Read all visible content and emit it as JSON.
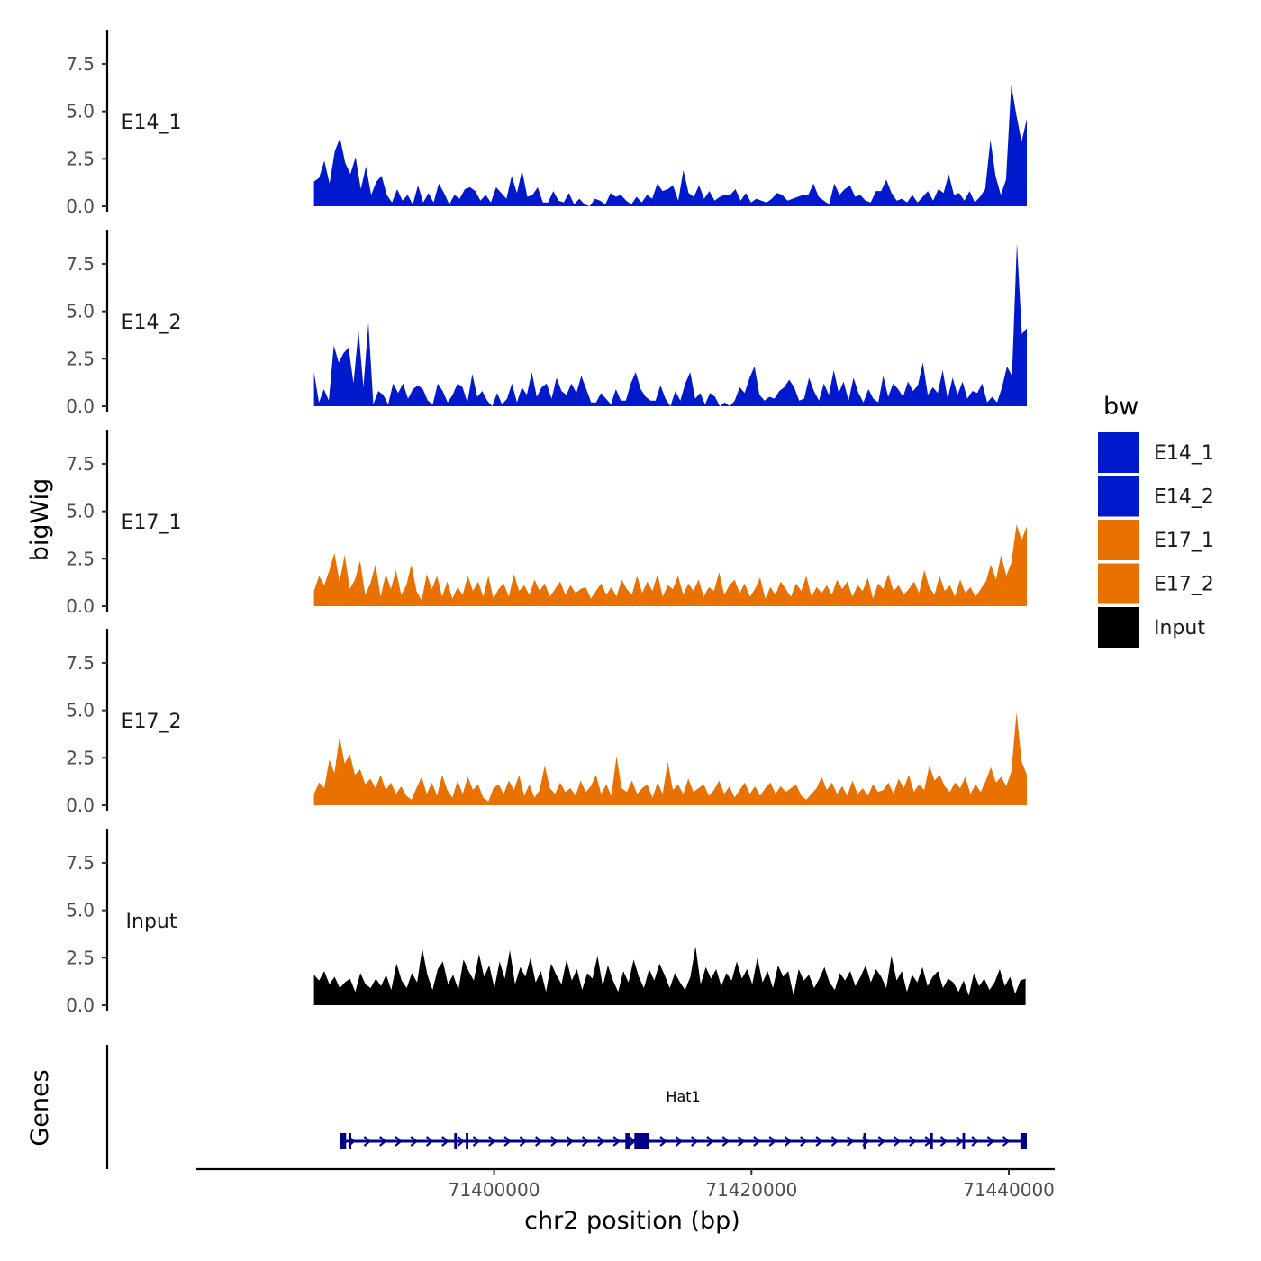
{
  "chart_data": {
    "type": "area",
    "xlabel": "chr2 position (bp)",
    "ylabel": "bigWig",
    "gene_panel_label": "Genes",
    "x_range": [
      71377000,
      71443500
    ],
    "x_ticks": [
      71400000,
      71420000,
      71440000
    ],
    "x_tick_labels": [
      "71400000",
      "71420000",
      "71440000"
    ],
    "y_range": [
      0,
      9.3
    ],
    "y_ticks": [
      0,
      2.5,
      5,
      7.5
    ],
    "y_tick_labels": [
      "0.0",
      "2.5",
      "5.0",
      "7.5"
    ],
    "legend": {
      "title": "bw",
      "position": "right",
      "entries": [
        {
          "label": "E14_1",
          "color": "#0019cc"
        },
        {
          "label": "E14_2",
          "color": "#0019cc"
        },
        {
          "label": "E17_1",
          "color": "#e87100"
        },
        {
          "label": "E17_2",
          "color": "#e87100"
        },
        {
          "label": "Input",
          "color": "#000000"
        }
      ]
    },
    "series": [
      {
        "name": "E14_1",
        "color": "#0019cc",
        "x_start": 71386000,
        "x_end": 71441400,
        "values": [
          1.3,
          1.5,
          2.4,
          1.2,
          2.9,
          3.6,
          2.3,
          1.7,
          2.6,
          0.9,
          2.1,
          0.6,
          1.3,
          1.6,
          0.6,
          0.2,
          0.9,
          0.3,
          0.6,
          0.1,
          1.1,
          0.2,
          0.7,
          0.2,
          1.2,
          0.7,
          0.1,
          0.6,
          0.4,
          0.9,
          1.0,
          0.8,
          0.3,
          0.6,
          0.2,
          1.0,
          0.7,
          0.4,
          1.6,
          0.7,
          1.9,
          0.5,
          0.6,
          1.0,
          0.2,
          0.2,
          0.8,
          0.3,
          0.2,
          0.7,
          0.1,
          0.4,
          0.1,
          0.0,
          0.4,
          0.3,
          0.1,
          0.7,
          0.5,
          0.6,
          0.3,
          0.1,
          0.5,
          0.2,
          0.6,
          0.4,
          1.2,
          0.8,
          0.9,
          1.1,
          0.3,
          1.9,
          0.7,
          0.5,
          1.1,
          0.4,
          0.8,
          0.3,
          0.5,
          0.6,
          0.6,
          0.9,
          0.3,
          0.7,
          0.2,
          0.4,
          0.3,
          0.2,
          0.4,
          0.7,
          0.6,
          0.3,
          0.4,
          0.5,
          0.6,
          0.6,
          1.2,
          0.5,
          0.3,
          0.1,
          1.2,
          0.6,
          0.9,
          1.1,
          0.5,
          0.6,
          0.3,
          0.2,
          0.8,
          0.8,
          1.4,
          0.7,
          0.3,
          0.4,
          0.2,
          0.6,
          0.2,
          0.5,
          0.8,
          0.3,
          0.9,
          0.7,
          1.7,
          0.6,
          0.7,
          0.3,
          0.8,
          0.2,
          0.5,
          0.9,
          3.5,
          1.6,
          0.6,
          1.4,
          6.4,
          4.8,
          3.4,
          4.6
        ]
      },
      {
        "name": "E14_2",
        "color": "#0019cc",
        "x_start": 71386000,
        "x_end": 71441400,
        "values": [
          1.8,
          0.2,
          0.9,
          0.3,
          3.2,
          2.3,
          2.8,
          3.1,
          1.2,
          4.0,
          1.0,
          4.4,
          0.1,
          0.8,
          0.6,
          0.1,
          1.2,
          0.7,
          1.2,
          0.4,
          0.9,
          1.1,
          0.9,
          0.3,
          0.1,
          1.2,
          0.8,
          0.2,
          0.6,
          1.2,
          1.0,
          0.2,
          1.7,
          0.5,
          0.8,
          0.3,
          0.0,
          0.7,
          0.1,
          0.4,
          1.2,
          0.2,
          1.0,
          0.6,
          1.8,
          0.5,
          1.0,
          1.2,
          0.4,
          1.5,
          0.8,
          0.6,
          1.2,
          0.7,
          1.6,
          0.9,
          0.2,
          0.2,
          0.7,
          0.4,
          0.1,
          0.9,
          0.3,
          0.3,
          1.2,
          1.8,
          0.9,
          0.5,
          0.3,
          0.3,
          1.1,
          0.4,
          0.0,
          0.8,
          0.3,
          1.2,
          1.8,
          0.4,
          0.7,
          0.1,
          0.7,
          0.5,
          0.0,
          0.2,
          0.0,
          0.3,
          1.0,
          0.7,
          1.5,
          2.1,
          0.6,
          0.3,
          0.5,
          0.4,
          0.8,
          1.0,
          1.4,
          1.0,
          0.3,
          0.4,
          1.5,
          0.8,
          0.3,
          1.2,
          0.6,
          1.9,
          0.7,
          1.3,
          0.3,
          1.5,
          0.7,
          0.2,
          0.9,
          0.4,
          0.2,
          1.6,
          0.5,
          1.2,
          0.9,
          0.5,
          1.3,
          0.8,
          1.1,
          2.3,
          0.6,
          1.0,
          0.7,
          1.9,
          0.4,
          1.5,
          0.6,
          1.3,
          0.4,
          0.8,
          0.7,
          1.2,
          0.2,
          0.5,
          0.2,
          1.0,
          2.1,
          1.6,
          8.6,
          3.8,
          4.1
        ]
      },
      {
        "name": "E17_1",
        "color": "#e87100",
        "x_start": 71386000,
        "x_end": 71441400,
        "values": [
          0.8,
          1.6,
          1.1,
          1.9,
          2.8,
          1.3,
          2.7,
          0.9,
          1.4,
          2.4,
          0.6,
          1.2,
          2.2,
          0.5,
          1.7,
          0.9,
          1.9,
          0.6,
          1.1,
          2.2,
          0.8,
          0.3,
          1.7,
          0.9,
          1.6,
          0.5,
          1.3,
          0.4,
          1.0,
          0.6,
          1.6,
          0.8,
          1.3,
          0.5,
          1.6,
          0.4,
          0.9,
          1.2,
          0.5,
          1.7,
          0.8,
          1.1,
          0.6,
          1.4,
          0.8,
          1.2,
          0.5,
          0.9,
          1.3,
          0.6,
          1.1,
          0.7,
          0.9,
          1.0,
          0.4,
          0.8,
          1.2,
          0.6,
          1.0,
          0.5,
          1.4,
          0.9,
          0.6,
          1.6,
          0.7,
          1.3,
          0.8,
          1.7,
          0.5,
          1.1,
          0.9,
          1.6,
          0.6,
          1.2,
          0.8,
          1.4,
          0.5,
          1.0,
          0.8,
          1.8,
          0.6,
          1.1,
          1.4,
          0.7,
          1.2,
          0.5,
          0.9,
          1.5,
          0.4,
          1.0,
          0.6,
          1.3,
          0.9,
          0.5,
          1.2,
          0.8,
          1.6,
          0.5,
          1.0,
          0.7,
          1.1,
          0.6,
          1.4,
          0.9,
          1.3,
          0.5,
          1.1,
          0.8,
          1.5,
          0.4,
          1.2,
          0.9,
          1.7,
          0.8,
          1.1,
          0.6,
          0.9,
          1.3,
          0.7,
          1.9,
          1.0,
          0.6,
          1.6,
          0.8,
          1.1,
          0.5,
          1.4,
          0.7,
          1.0,
          0.5,
          0.9,
          1.3,
          2.2,
          1.4,
          2.7,
          1.6,
          2.3,
          4.3,
          3.5,
          4.2
        ]
      },
      {
        "name": "E17_2",
        "color": "#e87100",
        "x_start": 71386000,
        "x_end": 71441400,
        "values": [
          0.6,
          1.2,
          0.9,
          2.4,
          1.7,
          3.6,
          2.2,
          2.7,
          1.6,
          1.9,
          1.1,
          1.4,
          0.9,
          1.6,
          0.8,
          1.2,
          0.6,
          1.0,
          0.5,
          0.3,
          0.9,
          1.5,
          0.6,
          1.2,
          0.5,
          1.6,
          0.8,
          0.4,
          1.3,
          0.6,
          1.5,
          0.8,
          1.1,
          0.4,
          0.2,
          0.9,
          1.1,
          0.6,
          1.3,
          0.8,
          1.6,
          0.5,
          1.1,
          0.4,
          0.8,
          2.1,
          0.9,
          0.6,
          1.2,
          0.7,
          0.9,
          0.5,
          1.3,
          0.7,
          1.0,
          1.6,
          0.6,
          1.1,
          0.5,
          2.6,
          0.9,
          0.7,
          1.3,
          0.6,
          0.9,
          1.1,
          0.4,
          1.2,
          0.6,
          2.3,
          0.8,
          1.1,
          0.6,
          1.4,
          0.7,
          0.9,
          1.1,
          0.5,
          0.8,
          1.3,
          0.6,
          1.0,
          0.4,
          0.8,
          1.2,
          0.6,
          1.0,
          0.5,
          0.9,
          1.2,
          0.6,
          1.0,
          0.7,
          0.9,
          1.1,
          0.5,
          0.3,
          0.6,
          0.9,
          1.5,
          0.8,
          1.2,
          0.6,
          1.0,
          0.5,
          1.3,
          0.6,
          0.9,
          0.5,
          1.1,
          0.7,
          0.8,
          1.2,
          0.6,
          1.4,
          0.9,
          1.6,
          0.7,
          1.1,
          0.8,
          2.1,
          1.3,
          1.6,
          1.0,
          0.7,
          1.2,
          0.9,
          1.5,
          0.6,
          1.1,
          0.7,
          1.3,
          2.0,
          1.2,
          1.5,
          1.0,
          1.8,
          4.9,
          2.3,
          1.6
        ]
      },
      {
        "name": "Input",
        "color": "#000000",
        "x_start": 71386000,
        "x_end": 71441300,
        "values": [
          1.6,
          1.3,
          1.8,
          1.1,
          1.5,
          0.9,
          1.2,
          1.4,
          0.7,
          1.7,
          1.1,
          0.9,
          1.4,
          1.0,
          1.6,
          0.8,
          2.2,
          1.3,
          0.9,
          1.7,
          1.2,
          3.0,
          1.6,
          0.8,
          1.9,
          2.3,
          1.1,
          1.6,
          0.8,
          2.4,
          1.8,
          1.3,
          2.7,
          1.5,
          2.1,
          0.9,
          2.3,
          1.4,
          2.9,
          1.1,
          2.0,
          1.5,
          2.5,
          1.2,
          1.8,
          0.7,
          2.2,
          1.6,
          1.1,
          2.4,
          1.3,
          1.9,
          0.8,
          1.7,
          1.4,
          2.6,
          1.0,
          2.1,
          1.3,
          0.7,
          1.8,
          1.2,
          2.4,
          1.5,
          0.9,
          1.9,
          1.3,
          2.2,
          1.6,
          0.9,
          1.7,
          1.2,
          0.8,
          1.5,
          3.1,
          1.1,
          2.0,
          1.4,
          1.9,
          1.0,
          1.7,
          1.3,
          2.3,
          1.4,
          1.9,
          1.1,
          2.5,
          1.2,
          1.8,
          0.9,
          2.1,
          1.5,
          1.8,
          0.5,
          1.9,
          1.3,
          1.6,
          0.9,
          1.4,
          2.0,
          1.2,
          0.8,
          1.7,
          1.3,
          1.8,
          1.0,
          1.5,
          2.1,
          1.2,
          1.9,
          1.5,
          0.9,
          2.6,
          1.3,
          1.8,
          0.7,
          1.6,
          1.2,
          2.0,
          1.0,
          1.5,
          1.8,
          0.9,
          1.4,
          1.2,
          0.7,
          1.3,
          0.5,
          1.7,
          1.0,
          1.4,
          0.8,
          1.2,
          1.9,
          1.0,
          1.5,
          0.6,
          1.3,
          1.4
        ]
      }
    ],
    "genes": [
      {
        "name": "Hat1",
        "strand": "+",
        "start": 71388000,
        "end": 71441400,
        "color": "#00008b",
        "exons": [
          {
            "start": 71388000,
            "end": 71388500
          },
          {
            "start": 71388700,
            "end": 71388900
          },
          {
            "start": 71396900,
            "end": 71397100
          },
          {
            "start": 71397800,
            "end": 71398000
          },
          {
            "start": 71410200,
            "end": 71410600
          },
          {
            "start": 71410900,
            "end": 71412000
          },
          {
            "start": 71428700,
            "end": 71428900
          },
          {
            "start": 71433900,
            "end": 71434100
          },
          {
            "start": 71436400,
            "end": 71436600
          },
          {
            "start": 71440900,
            "end": 71441400
          }
        ]
      }
    ]
  }
}
